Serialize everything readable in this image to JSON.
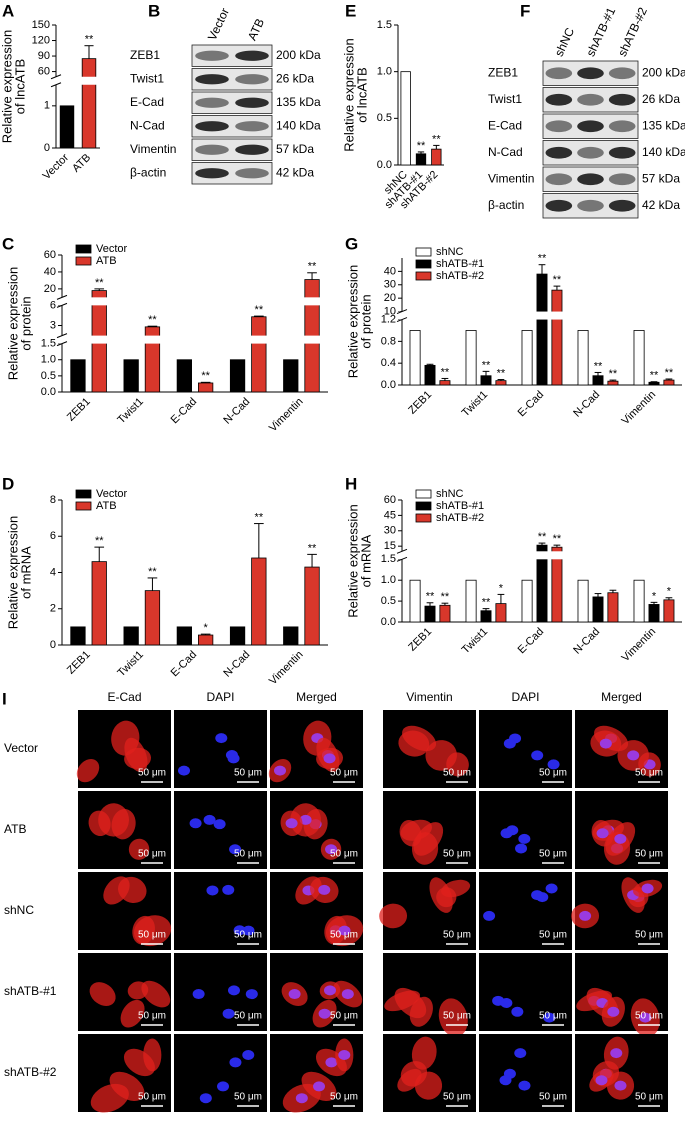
{
  "chart_data": [
    {
      "panel": "A",
      "type": "bar",
      "ylabel": [
        "Relative expression",
        "of lncATB"
      ],
      "categories": [
        "Vector",
        "ATB"
      ],
      "values": [
        1,
        85
      ],
      "errors": [
        null,
        25
      ],
      "annotations": [
        null,
        "**"
      ],
      "colors": [
        "#000000",
        "#d9372b"
      ],
      "yaxis_segments": [
        {
          "ylim": [
            0,
            1.5
          ],
          "yticks": [
            0,
            1
          ]
        },
        {
          "ylim": [
            50,
            150
          ],
          "yticks": [
            60,
            90,
            120,
            150
          ]
        }
      ]
    },
    {
      "panel": "E",
      "type": "bar",
      "ylabel": [
        "Relative expression",
        "of lncATB"
      ],
      "categories": [
        "shNC",
        "shATB-#1",
        "shATB-#2"
      ],
      "values": [
        1,
        0.12,
        0.17
      ],
      "errors": [
        null,
        0.02,
        0.04
      ],
      "annotations": [
        null,
        "**",
        "**"
      ],
      "colors": [
        "#ffffff",
        "#000000",
        "#d9372b"
      ],
      "yaxis_segments": [
        {
          "ylim": [
            0,
            1.5
          ],
          "yticks": [
            {
              "value": 0,
              "label": "0.0"
            },
            0.5,
            {
              "value": 1,
              "label": "1.0"
            },
            1.5
          ]
        }
      ]
    },
    {
      "panel": "C",
      "type": "bar",
      "ylabel": [
        "Relative expression",
        "of protein"
      ],
      "categories": [
        "ZEB1",
        "Twist1",
        "E-Cad",
        "N-Cad",
        "Vimentin"
      ],
      "legend": "upper left",
      "series": [
        {
          "name": "Vector",
          "color": "#000000",
          "values": [
            1,
            1,
            1,
            1,
            1
          ]
        },
        {
          "name": "ATB",
          "color": "#d9372b",
          "values": [
            18,
            2.8,
            0.28,
            4.3,
            31
          ],
          "errors": [
            2,
            0.1,
            0.02,
            0.1,
            8
          ],
          "annotations": [
            "**",
            "**",
            "**",
            "**",
            "**"
          ]
        }
      ],
      "yaxis_segments": [
        {
          "ylim": [
            0,
            1.5
          ],
          "yticks": [
            {
              "value": 0,
              "label": "0.0"
            },
            0.5,
            {
              "value": 1,
              "label": "1.0"
            },
            1.5
          ]
        },
        {
          "ylim": [
            1.5,
            6
          ],
          "yticks": [
            3,
            6
          ]
        },
        {
          "ylim": [
            10,
            60
          ],
          "yticks": [
            20,
            40,
            60
          ]
        }
      ]
    },
    {
      "panel": "G",
      "type": "bar",
      "ylabel": [
        "Relative expression",
        "of protein"
      ],
      "categories": [
        "ZEB1",
        "Twist1",
        "E-Cad",
        "N-Cad",
        "Vimentin"
      ],
      "legend": "upper left",
      "series": [
        {
          "name": "shNC",
          "color": "#ffffff",
          "values": [
            1,
            1,
            1,
            1,
            1
          ]
        },
        {
          "name": "shATB-#1",
          "color": "#000000",
          "values": [
            0.36,
            0.17,
            38,
            0.17,
            0.05
          ],
          "errors": [
            0.02,
            0.08,
            7,
            0.06,
            0.01
          ],
          "annotations": [
            null,
            "**",
            "**",
            "**",
            "**"
          ]
        },
        {
          "name": "shATB-#2",
          "color": "#d9372b",
          "values": [
            0.08,
            0.08,
            26,
            0.07,
            0.09
          ],
          "errors": [
            0.04,
            0.02,
            3,
            0.02,
            0.02
          ],
          "annotations": [
            "**",
            "**",
            "**",
            "**",
            "**"
          ]
        }
      ],
      "yaxis_segments": [
        {
          "ylim": [
            0,
            1.2
          ],
          "yticks": [
            {
              "value": 0,
              "label": "0.0"
            },
            0.4,
            0.8,
            1.2
          ]
        },
        {
          "ylim": [
            10,
            50
          ],
          "yticks": [
            10,
            20,
            30,
            40
          ]
        }
      ]
    },
    {
      "panel": "D",
      "type": "bar",
      "ylabel": [
        "Relative expression",
        "of mRNA"
      ],
      "categories": [
        "ZEB1",
        "Twist1",
        "E-Cad",
        "N-Cad",
        "Vimentin"
      ],
      "legend": "upper left",
      "series": [
        {
          "name": "Vector",
          "color": "#000000",
          "values": [
            1,
            1,
            1,
            1,
            1
          ]
        },
        {
          "name": "ATB",
          "color": "#d9372b",
          "values": [
            4.6,
            3.0,
            0.55,
            4.8,
            4.3
          ],
          "errors": [
            0.8,
            0.7,
            0.05,
            1.9,
            0.7
          ],
          "annotations": [
            "**",
            "**",
            "*",
            "**",
            "**"
          ]
        }
      ],
      "yaxis_segments": [
        {
          "ylim": [
            0,
            8
          ],
          "yticks": [
            0,
            2,
            4,
            6,
            8
          ]
        }
      ]
    },
    {
      "panel": "H",
      "type": "bar",
      "ylabel": [
        "Relative expression",
        "of mRNA"
      ],
      "categories": [
        "ZEB1",
        "Twist1",
        "E-Cad",
        "N-Cad",
        "Vimentin"
      ],
      "legend": "upper left",
      "series": [
        {
          "name": "shNC",
          "color": "#ffffff",
          "values": [
            1,
            1,
            1,
            1,
            1
          ]
        },
        {
          "name": "shATB-#1",
          "color": "#000000",
          "values": [
            0.38,
            0.27,
            16,
            0.6,
            0.42
          ],
          "errors": [
            0.08,
            0.05,
            2,
            0.08,
            0.05
          ],
          "annotations": [
            "**",
            "**",
            "**",
            null,
            "*"
          ]
        },
        {
          "name": "shATB-#2",
          "color": "#d9372b",
          "values": [
            0.4,
            0.44,
            14,
            0.7,
            0.53
          ],
          "errors": [
            0.05,
            0.22,
            2,
            0.06,
            0.05
          ],
          "annotations": [
            "**",
            "*",
            "**",
            null,
            "*"
          ]
        }
      ],
      "yaxis_segments": [
        {
          "ylim": [
            0,
            1.5
          ],
          "yticks": [
            {
              "value": 0,
              "label": "0.0"
            },
            0.5,
            {
              "value": 1,
              "label": "1.0"
            },
            1.5
          ]
        },
        {
          "ylim": [
            10,
            60
          ],
          "yticks": [
            15,
            30,
            45,
            60
          ]
        }
      ]
    }
  ],
  "blots": [
    {
      "panel": "B",
      "columns": [
        "Vector",
        "ATB"
      ],
      "rows": [
        {
          "label": "ZEB1",
          "size": "200 kDa"
        },
        {
          "label": "Twist1",
          "size": "26 kDa"
        },
        {
          "label": "E-Cad",
          "size": "135 kDa"
        },
        {
          "label": "N-Cad",
          "size": "140 kDa"
        },
        {
          "label": "Vimentin",
          "size": "57 kDa"
        },
        {
          "label": "β-actin",
          "size": "42 kDa"
        }
      ]
    },
    {
      "panel": "F",
      "columns": [
        "shNC",
        "shATB-#1",
        "shATB-#2"
      ],
      "rows": [
        {
          "label": "ZEB1",
          "size": "200 kDa"
        },
        {
          "label": "Twist1",
          "size": "26 kDa"
        },
        {
          "label": "E-Cad",
          "size": "135 kDa"
        },
        {
          "label": "N-Cad",
          "size": "140 kDa"
        },
        {
          "label": "Vimentin",
          "size": "57 kDa"
        },
        {
          "label": "β-actin",
          "size": "42 kDa"
        }
      ]
    }
  ],
  "microscopy": {
    "panel": "I",
    "columns": [
      "E-Cad",
      "DAPI",
      "Merged",
      "Vimentin",
      "DAPI",
      "Merged"
    ],
    "rows": [
      "Vector",
      "ATB",
      "shNC",
      "shATB-#1",
      "shATB-#2"
    ],
    "scale_bar": "50 μm"
  }
}
